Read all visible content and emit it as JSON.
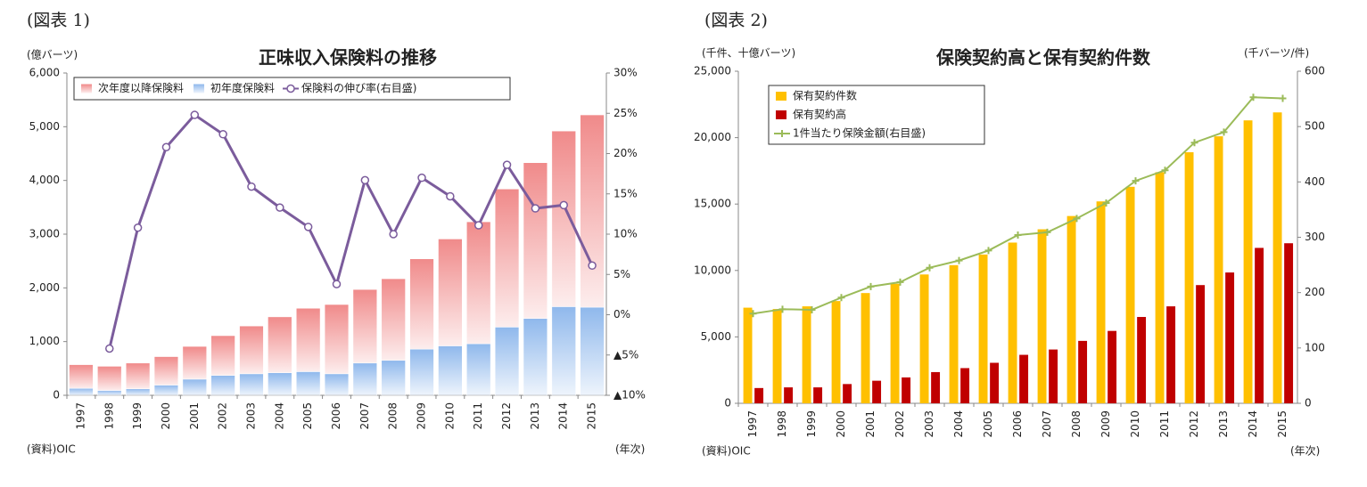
{
  "chart_data": [
    {
      "type": "bar",
      "stacked": true,
      "gradient": true,
      "figure_label": "(図表 1)",
      "title": "正味収入保険料の推移",
      "ylabel": "(億バーツ)",
      "xlabel": "(年次)",
      "source": "(資料)OIC",
      "legend": "upper-left",
      "negative_tick_color": "#ff0000",
      "categories": [
        "1997",
        "1998",
        "1999",
        "2000",
        "2001",
        "2002",
        "2003",
        "2004",
        "2005",
        "2006",
        "2007",
        "2008",
        "2009",
        "2010",
        "2011",
        "2012",
        "2013",
        "2014",
        "2015"
      ],
      "series": [
        {
          "name": "次年度以降保険料",
          "type": "bar",
          "color": "#f08a8a",
          "values": [
            440,
            450,
            480,
            530,
            610,
            740,
            890,
            1040,
            1180,
            1290,
            1370,
            1520,
            1680,
            1990,
            2270,
            2570,
            2900,
            3270,
            3580
          ]
        },
        {
          "name": "初年度保険料",
          "type": "bar",
          "color": "#8fb8ec",
          "values": [
            130,
            90,
            120,
            190,
            300,
            370,
            400,
            420,
            440,
            400,
            600,
            650,
            860,
            920,
            960,
            1270,
            1430,
            1650,
            1640
          ]
        },
        {
          "name": "保険料の伸び率(右目盛)",
          "type": "line",
          "axis": "y2",
          "marker": "circle",
          "color": "#7b5c9c",
          "values": [
            null,
            -4.2,
            10.8,
            20.8,
            24.8,
            22.4,
            15.9,
            13.3,
            10.9,
            3.8,
            16.7,
            10.0,
            17.0,
            14.7,
            11.1,
            18.6,
            13.2,
            13.6,
            6.1
          ]
        }
      ],
      "ylim": [
        0,
        6000
      ],
      "yticks": [
        0,
        {
          "value": 1000,
          "label": "1,000"
        },
        {
          "value": 2000,
          "label": "2,000"
        },
        {
          "value": 3000,
          "label": "3,000"
        },
        {
          "value": 4000,
          "label": "4,000"
        },
        {
          "value": 5000,
          "label": "5,000"
        },
        {
          "value": 6000,
          "label": "6,000"
        }
      ],
      "y2lim": [
        -10,
        30
      ],
      "y2ticks": [
        {
          "value": -10,
          "label": "▲10%"
        },
        {
          "value": -5,
          "label": "▲5%"
        },
        {
          "value": 0,
          "label": "0%"
        },
        {
          "value": 5,
          "label": "5%"
        },
        {
          "value": 10,
          "label": "10%"
        },
        {
          "value": 15,
          "label": "15%"
        },
        {
          "value": 20,
          "label": "20%"
        },
        {
          "value": 25,
          "label": "25%"
        },
        {
          "value": 30,
          "label": "30%"
        }
      ]
    },
    {
      "type": "bar",
      "stacked": false,
      "gradient": false,
      "figure_label": "(図表 2)",
      "title": "保険契約高と保有契約件数",
      "ylabel": "(千件、十億バーツ)",
      "y2label": "(千バーツ/件)",
      "xlabel": "(年次)",
      "source": "(資料)OIC",
      "legend": "upper-left",
      "categories": [
        "1997",
        "1998",
        "1999",
        "2000",
        "2001",
        "2002",
        "2003",
        "2004",
        "2005",
        "2006",
        "2007",
        "2008",
        "2009",
        "2010",
        "2011",
        "2012",
        "2013",
        "2014",
        "2015"
      ],
      "series": [
        {
          "name": "保有契約件数",
          "type": "bar",
          "color": "#ffc000",
          "values": [
            7200,
            7100,
            7300,
            7700,
            8300,
            9000,
            9700,
            10400,
            11200,
            12100,
            13100,
            14100,
            15200,
            16300,
            17400,
            18900,
            20100,
            21300,
            21900
          ]
        },
        {
          "name": "保有契約高",
          "type": "bar",
          "color": "#c00000",
          "values": [
            1150,
            1200,
            1200,
            1450,
            1700,
            1950,
            2350,
            2650,
            3050,
            3650,
            4050,
            4700,
            5450,
            6500,
            7300,
            8900,
            9850,
            11700,
            12050
          ]
        },
        {
          "name": "1件当たり保険金額(右目盛)",
          "type": "line",
          "axis": "y2",
          "marker": "plus",
          "color": "#9bbb59",
          "values": [
            162,
            170,
            169,
            191,
            211,
            219,
            245,
            258,
            276,
            304,
            309,
            334,
            362,
            402,
            421,
            471,
            490,
            553,
            551
          ]
        }
      ],
      "ylim": [
        0,
        25000
      ],
      "yticks": [
        0,
        {
          "value": 5000,
          "label": "5,000"
        },
        {
          "value": 10000,
          "label": "10,000"
        },
        {
          "value": 15000,
          "label": "15,000"
        },
        {
          "value": 20000,
          "label": "20,000"
        },
        {
          "value": 25000,
          "label": "25,000"
        }
      ],
      "y2lim": [
        0,
        600
      ],
      "y2ticks": [
        0,
        100,
        200,
        300,
        400,
        500,
        600
      ]
    }
  ]
}
